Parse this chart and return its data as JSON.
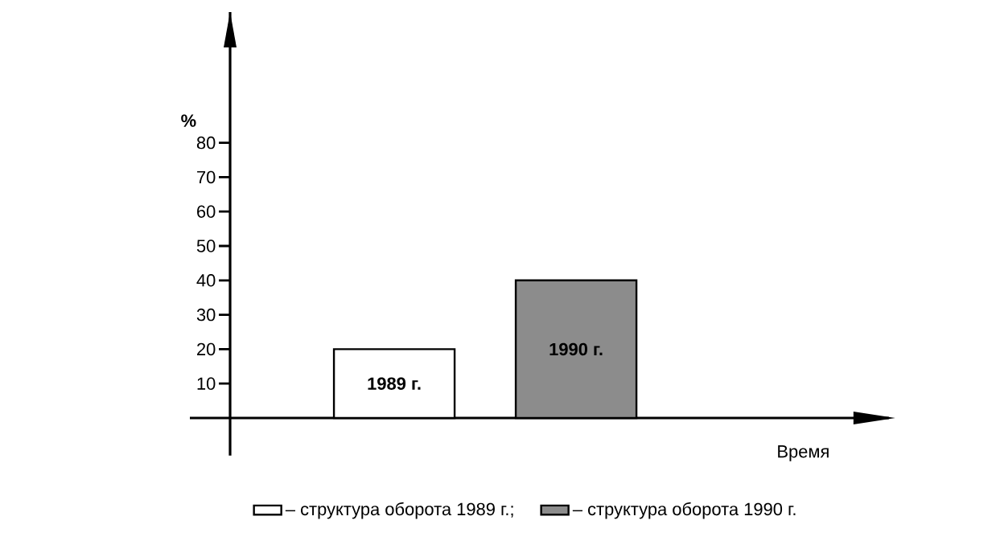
{
  "chart_data": {
    "type": "bar",
    "xlabel": "Время",
    "ylabel": "%",
    "categories": [
      "1989 г.",
      "1990 г."
    ],
    "series": [
      {
        "name": "– структура оборота 1989 г.;",
        "color": "#ffffff",
        "values": [
          20,
          null
        ]
      },
      {
        "name": "– структура оборота 1990 г.",
        "color": "#8c8c8c",
        "values": [
          null,
          40
        ]
      }
    ],
    "ylim": [
      -10.9,
      118
    ],
    "yticks": [
      10,
      20,
      30,
      40,
      50,
      60,
      70,
      80
    ],
    "legend": "bottom"
  }
}
